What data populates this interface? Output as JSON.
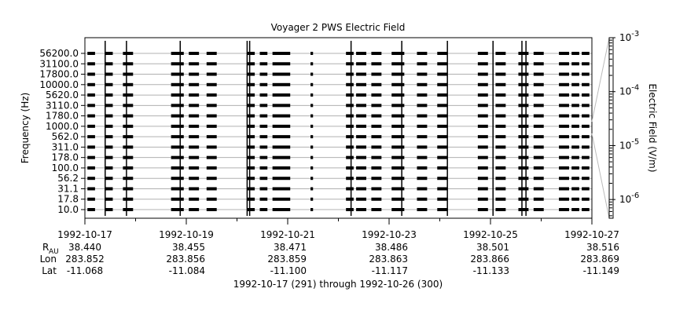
{
  "chart_data": {
    "type": "heatmap",
    "title": "Voyager 2 PWS Electric Field",
    "ylabel": "Frequency (Hz)",
    "xlabel": "1992-10-17 (291) through 1992-10-26 (300)",
    "colorbar_label": "Electric Field (V/m)",
    "colorbar_scale": "log",
    "colorbar_range": [
      4.5e-07,
      0.001
    ],
    "colorbar_ticks": [
      {
        "base": "10",
        "exp": "-3",
        "value": 0.001
      },
      {
        "base": "10",
        "exp": "-4",
        "value": 0.0001
      },
      {
        "base": "10",
        "exp": "-5",
        "value": 1e-05
      },
      {
        "base": "10",
        "exp": "-6",
        "value": 1e-06
      }
    ],
    "y_channels": [
      "56200.0",
      "31100.0",
      "17800.0",
      "10000.0",
      "5620.0",
      "3110.0",
      "1780.0",
      "1000.0",
      "562.0",
      "311.0",
      "178.0",
      "100.0",
      "56.2",
      "31.1",
      "17.8",
      "10.0"
    ],
    "x_range_days": [
      0,
      10
    ],
    "x_ticks": [
      {
        "day": 0,
        "date": "1992-10-17",
        "r_au": "38.440",
        "lon": "283.852",
        "lat": "-11.068"
      },
      {
        "day": 2,
        "date": "1992-10-19",
        "r_au": "38.455",
        "lon": "283.856",
        "lat": "-11.084"
      },
      {
        "day": 4,
        "date": "1992-10-21",
        "r_au": "38.471",
        "lon": "283.859",
        "lat": "-11.100"
      },
      {
        "day": 6,
        "date": "1992-10-23",
        "r_au": "38.486",
        "lon": "283.863",
        "lat": "-11.117"
      },
      {
        "day": 8,
        "date": "1992-10-25",
        "r_au": "38.501",
        "lon": "283.866",
        "lat": "-11.133"
      },
      {
        "day": 10,
        "date": "1992-10-27",
        "r_au": "38.516",
        "lon": "283.869",
        "lat": "-11.149"
      }
    ],
    "row_labels": {
      "r": "R",
      "r_sub": "AU",
      "lon": "Lon",
      "lat": "Lat"
    },
    "data_coverage_days": [
      [
        0.05,
        0.2
      ],
      [
        0.4,
        0.55
      ],
      [
        0.75,
        0.95
      ],
      [
        1.7,
        1.95
      ],
      [
        2.05,
        2.25
      ],
      [
        2.4,
        2.6
      ],
      [
        3.2,
        3.35
      ],
      [
        3.45,
        3.6
      ],
      [
        3.7,
        4.05
      ],
      [
        4.45,
        4.5
      ],
      [
        5.15,
        5.3
      ],
      [
        5.35,
        5.55
      ],
      [
        5.65,
        5.85
      ],
      [
        6.05,
        6.3
      ],
      [
        6.55,
        6.75
      ],
      [
        6.95,
        7.15
      ],
      [
        7.75,
        7.95
      ],
      [
        8.1,
        8.3
      ],
      [
        8.55,
        8.75
      ],
      [
        8.85,
        9.05
      ],
      [
        9.35,
        9.55
      ],
      [
        9.6,
        9.75
      ],
      [
        9.8,
        9.95
      ]
    ],
    "burst_days": [
      0.4,
      0.82,
      1.88,
      3.2,
      3.25,
      5.25,
      6.25,
      7.15,
      8.05,
      8.62,
      8.7
    ],
    "grid": true
  }
}
